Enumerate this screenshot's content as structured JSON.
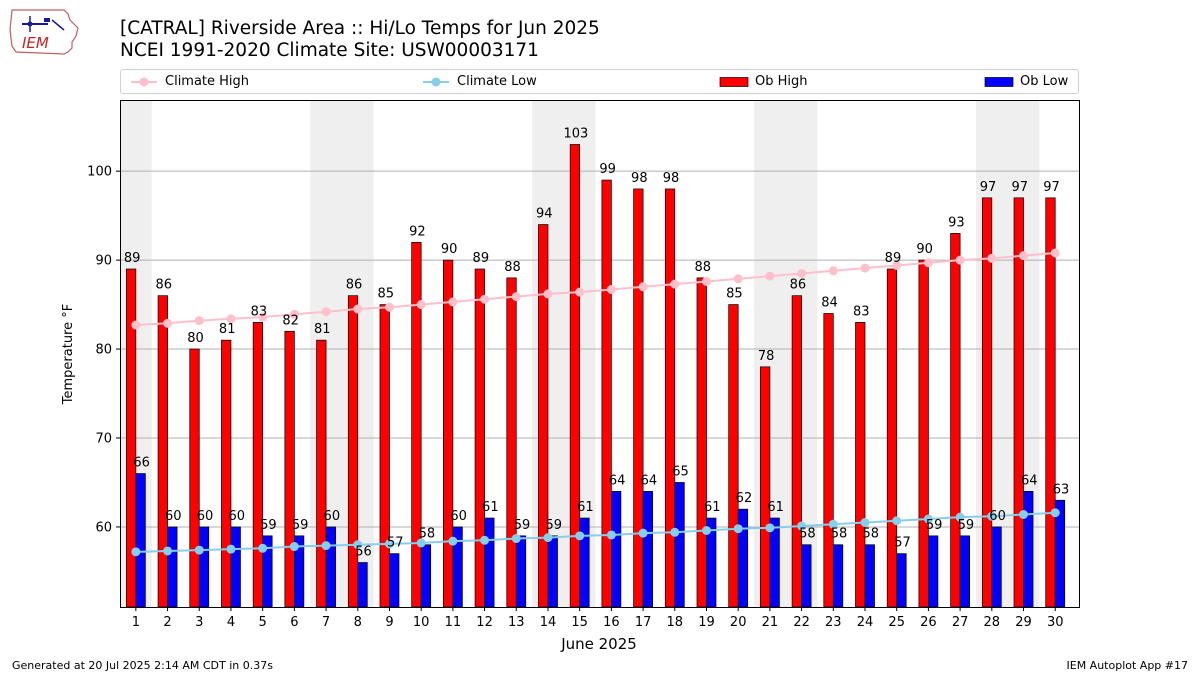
{
  "header": {
    "title": "[CATRAL] Riverside Area :: Hi/Lo Temps for Jun 2025",
    "subtitle": "NCEI 1991-2020 Climate Site: USW00003171"
  },
  "logo": {
    "text": "IEM",
    "icon": "iem-iowa-logo"
  },
  "footer": {
    "generated": "Generated at 20 Jul 2025 2:14 AM CDT in 0.37s",
    "app": "IEM Autoplot App #17"
  },
  "chart_data": {
    "type": "bar",
    "xlabel": "June 2025",
    "ylabel": "Temperature °F",
    "ylim": [
      51,
      108
    ],
    "yticks": [
      60,
      70,
      80,
      90,
      100
    ],
    "grid": "horizontal",
    "legend_position": "top",
    "categories": [
      "1",
      "2",
      "3",
      "4",
      "5",
      "6",
      "7",
      "8",
      "9",
      "10",
      "11",
      "12",
      "13",
      "14",
      "15",
      "16",
      "17",
      "18",
      "19",
      "20",
      "21",
      "22",
      "23",
      "24",
      "25",
      "26",
      "27",
      "28",
      "29",
      "30"
    ],
    "weekend_shading_days": [
      1,
      7,
      8,
      14,
      15,
      21,
      22,
      28,
      29
    ],
    "series": [
      {
        "name": "Ob High",
        "kind": "bar",
        "color": "#ff0000",
        "values": [
          89,
          86,
          80,
          81,
          83,
          82,
          81,
          86,
          85,
          92,
          90,
          89,
          88,
          94,
          103,
          99,
          98,
          98,
          88,
          85,
          78,
          86,
          84,
          83,
          89,
          90,
          93,
          97,
          97,
          97
        ]
      },
      {
        "name": "Ob Low",
        "kind": "bar",
        "color": "#0000ff",
        "values": [
          66,
          60,
          60,
          60,
          59,
          59,
          60,
          56,
          57,
          58,
          60,
          61,
          59,
          59,
          61,
          64,
          64,
          65,
          61,
          62,
          61,
          58,
          58,
          58,
          57,
          59,
          59,
          60,
          64,
          63
        ]
      },
      {
        "name": "Climate High",
        "kind": "line",
        "color": "#ffc0cb",
        "values": [
          82.7,
          82.9,
          83.2,
          83.4,
          83.6,
          83.9,
          84.2,
          84.5,
          84.7,
          85.0,
          85.3,
          85.6,
          85.9,
          86.2,
          86.4,
          86.7,
          87.0,
          87.3,
          87.6,
          87.9,
          88.2,
          88.5,
          88.8,
          89.1,
          89.4,
          89.7,
          90.0,
          90.2,
          90.5,
          90.8
        ]
      },
      {
        "name": "Climate Low",
        "kind": "line",
        "color": "#87ceeb",
        "values": [
          57.2,
          57.3,
          57.4,
          57.5,
          57.6,
          57.8,
          57.9,
          58.0,
          58.1,
          58.2,
          58.4,
          58.5,
          58.7,
          58.8,
          59.0,
          59.1,
          59.3,
          59.4,
          59.6,
          59.8,
          59.9,
          60.1,
          60.3,
          60.5,
          60.7,
          60.9,
          61.1,
          61.2,
          61.4,
          61.6
        ]
      }
    ],
    "legend_order": [
      "Climate High",
      "Climate Low",
      "Ob High",
      "Ob Low"
    ]
  }
}
